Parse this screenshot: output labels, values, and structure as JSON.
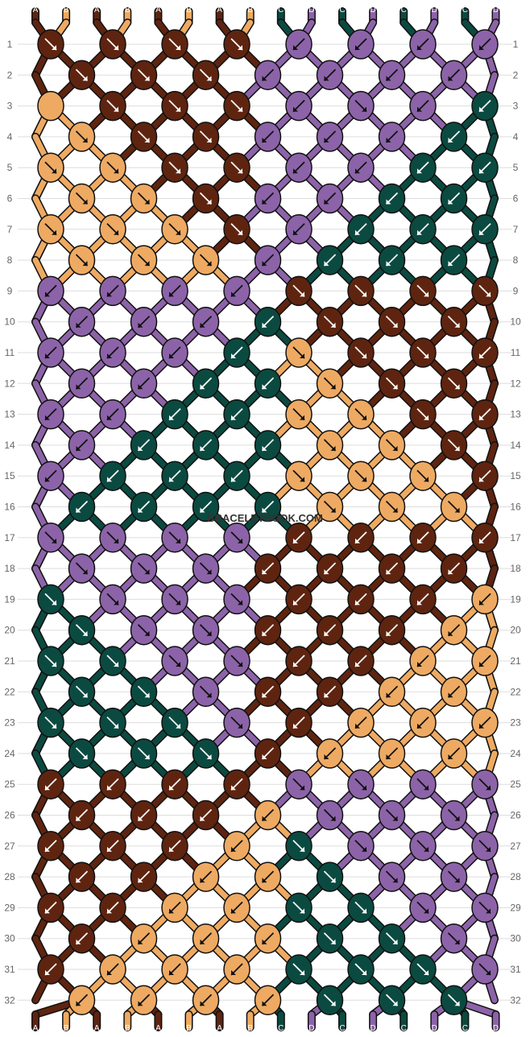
{
  "colors": {
    "A": "#5e2410",
    "B": "#eeaa62",
    "C": "#0b4a40",
    "D": "#8c63a8"
  },
  "top_strings": [
    "A",
    "B",
    "A",
    "B",
    "A",
    "B",
    "A",
    "B",
    "C",
    "D",
    "C",
    "D",
    "C",
    "D",
    "C",
    "D"
  ],
  "bottom_strings": [
    "A",
    "B",
    "A",
    "B",
    "A",
    "B",
    "A",
    "B",
    "C",
    "D",
    "C",
    "D",
    "C",
    "D",
    "C",
    "D"
  ],
  "rows": [
    "1",
    "2",
    "3",
    "4",
    "5",
    "6",
    "7",
    "8",
    "9",
    "10",
    "11",
    "12",
    "13",
    "14",
    "15",
    "16",
    "17",
    "18",
    "19",
    "20",
    "21",
    "22",
    "23",
    "24",
    "25",
    "26",
    "27",
    "28",
    "29",
    "30",
    "31",
    "32"
  ],
  "watermark": "BRACELETBOOK.COM",
  "knots": [
    [
      [
        "A",
        "se"
      ],
      [
        "A",
        "se"
      ],
      [
        "A",
        "se"
      ],
      [
        "A",
        "se"
      ],
      [
        "D",
        "sw"
      ],
      [
        "D",
        "sw"
      ],
      [
        "D",
        "sw"
      ],
      [
        "D",
        "sw"
      ]
    ],
    [
      [
        "A",
        "se"
      ],
      [
        "A",
        "se"
      ],
      [
        "A",
        "se"
      ],
      [
        "D",
        "sw"
      ],
      [
        "D",
        "sw"
      ],
      [
        "D",
        "sw"
      ],
      [
        "D",
        "sw"
      ]
    ],
    [
      [
        "B",
        "n"
      ],
      [
        "A",
        "se"
      ],
      [
        "A",
        "se"
      ],
      [
        "A",
        "se"
      ],
      [
        "D",
        "sw"
      ],
      [
        "D",
        "se"
      ],
      [
        "D",
        "sw"
      ],
      [
        "C",
        "sw"
      ]
    ],
    [
      [
        "B",
        "se"
      ],
      [
        "A",
        "se"
      ],
      [
        "A",
        "se"
      ],
      [
        "D",
        "sw"
      ],
      [
        "D",
        "sw"
      ],
      [
        "D",
        "sw"
      ],
      [
        "C",
        "sw"
      ]
    ],
    [
      [
        "B",
        "se"
      ],
      [
        "B",
        "se"
      ],
      [
        "A",
        "se"
      ],
      [
        "A",
        "se"
      ],
      [
        "D",
        "sw"
      ],
      [
        "D",
        "sw"
      ],
      [
        "C",
        "sw"
      ],
      [
        "C",
        "sw"
      ]
    ],
    [
      [
        "B",
        "se"
      ],
      [
        "B",
        "se"
      ],
      [
        "A",
        "se"
      ],
      [
        "D",
        "sw"
      ],
      [
        "D",
        "sw"
      ],
      [
        "C",
        "sw"
      ],
      [
        "C",
        "sw"
      ]
    ],
    [
      [
        "B",
        "se"
      ],
      [
        "B",
        "se"
      ],
      [
        "B",
        "se"
      ],
      [
        "A",
        "se"
      ],
      [
        "D",
        "sw"
      ],
      [
        "C",
        "sw"
      ],
      [
        "C",
        "sw"
      ],
      [
        "C",
        "sw"
      ]
    ],
    [
      [
        "B",
        "se"
      ],
      [
        "B",
        "se"
      ],
      [
        "B",
        "se"
      ],
      [
        "D",
        "sw"
      ],
      [
        "C",
        "sw"
      ],
      [
        "C",
        "sw"
      ],
      [
        "C",
        "sw"
      ]
    ],
    [
      [
        "D",
        "sw"
      ],
      [
        "D",
        "sw"
      ],
      [
        "D",
        "sw"
      ],
      [
        "D",
        "sw"
      ],
      [
        "A",
        "se"
      ],
      [
        "A",
        "se"
      ],
      [
        "A",
        "se"
      ],
      [
        "A",
        "se"
      ]
    ],
    [
      [
        "D",
        "sw"
      ],
      [
        "D",
        "sw"
      ],
      [
        "D",
        "sw"
      ],
      [
        "C",
        "sw"
      ],
      [
        "A",
        "se"
      ],
      [
        "A",
        "se"
      ],
      [
        "A",
        "se"
      ]
    ],
    [
      [
        "D",
        "sw"
      ],
      [
        "D",
        "sw"
      ],
      [
        "D",
        "sw"
      ],
      [
        "C",
        "sw"
      ],
      [
        "B",
        "se"
      ],
      [
        "A",
        "se"
      ],
      [
        "A",
        "se"
      ],
      [
        "A",
        "sw"
      ]
    ],
    [
      [
        "D",
        "sw"
      ],
      [
        "D",
        "sw"
      ],
      [
        "C",
        "sw"
      ],
      [
        "C",
        "sw"
      ],
      [
        "B",
        "se"
      ],
      [
        "A",
        "se"
      ],
      [
        "A",
        "se"
      ]
    ],
    [
      [
        "D",
        "sw"
      ],
      [
        "D",
        "sw"
      ],
      [
        "C",
        "sw"
      ],
      [
        "C",
        "sw"
      ],
      [
        "B",
        "se"
      ],
      [
        "B",
        "se"
      ],
      [
        "A",
        "se"
      ],
      [
        "A",
        "sw"
      ]
    ],
    [
      [
        "D",
        "sw"
      ],
      [
        "C",
        "sw"
      ],
      [
        "C",
        "sw"
      ],
      [
        "C",
        "sw"
      ],
      [
        "B",
        "se"
      ],
      [
        "B",
        "se"
      ],
      [
        "A",
        "se"
      ]
    ],
    [
      [
        "D",
        "sw"
      ],
      [
        "C",
        "sw"
      ],
      [
        "C",
        "sw"
      ],
      [
        "C",
        "sw"
      ],
      [
        "B",
        "se"
      ],
      [
        "B",
        "se"
      ],
      [
        "B",
        "se"
      ],
      [
        "A",
        "sw"
      ]
    ],
    [
      [
        "C",
        "sw"
      ],
      [
        "C",
        "sw"
      ],
      [
        "C",
        "sw"
      ],
      [
        "C",
        "sw"
      ],
      [
        "B",
        "se"
      ],
      [
        "B",
        "se"
      ],
      [
        "B",
        "se"
      ]
    ],
    [
      [
        "D",
        "se"
      ],
      [
        "D",
        "se"
      ],
      [
        "D",
        "se"
      ],
      [
        "D",
        "se"
      ],
      [
        "A",
        "sw"
      ],
      [
        "A",
        "sw"
      ],
      [
        "A",
        "sw"
      ],
      [
        "A",
        "sw"
      ]
    ],
    [
      [
        "D",
        "se"
      ],
      [
        "D",
        "se"
      ],
      [
        "D",
        "se"
      ],
      [
        "A",
        "sw"
      ],
      [
        "A",
        "sw"
      ],
      [
        "A",
        "sw"
      ],
      [
        "A",
        "sw"
      ]
    ],
    [
      [
        "C",
        "se"
      ],
      [
        "D",
        "se"
      ],
      [
        "D",
        "se"
      ],
      [
        "D",
        "se"
      ],
      [
        "A",
        "sw"
      ],
      [
        "A",
        "sw"
      ],
      [
        "A",
        "sw"
      ],
      [
        "B",
        "sw"
      ]
    ],
    [
      [
        "C",
        "se"
      ],
      [
        "D",
        "se"
      ],
      [
        "D",
        "se"
      ],
      [
        "A",
        "sw"
      ],
      [
        "A",
        "sw"
      ],
      [
        "A",
        "sw"
      ],
      [
        "B",
        "sw"
      ]
    ],
    [
      [
        "C",
        "se"
      ],
      [
        "C",
        "se"
      ],
      [
        "D",
        "se"
      ],
      [
        "D",
        "se"
      ],
      [
        "A",
        "sw"
      ],
      [
        "A",
        "sw"
      ],
      [
        "B",
        "sw"
      ],
      [
        "B",
        "sw"
      ]
    ],
    [
      [
        "C",
        "se"
      ],
      [
        "C",
        "se"
      ],
      [
        "D",
        "se"
      ],
      [
        "A",
        "sw"
      ],
      [
        "A",
        "sw"
      ],
      [
        "B",
        "sw"
      ],
      [
        "B",
        "sw"
      ]
    ],
    [
      [
        "C",
        "se"
      ],
      [
        "C",
        "se"
      ],
      [
        "C",
        "se"
      ],
      [
        "D",
        "se"
      ],
      [
        "A",
        "sw"
      ],
      [
        "B",
        "sw"
      ],
      [
        "B",
        "sw"
      ],
      [
        "B",
        "sw"
      ]
    ],
    [
      [
        "C",
        "se"
      ],
      [
        "C",
        "se"
      ],
      [
        "C",
        "se"
      ],
      [
        "A",
        "sw"
      ],
      [
        "B",
        "sw"
      ],
      [
        "B",
        "sw"
      ],
      [
        "B",
        "sw"
      ]
    ],
    [
      [
        "A",
        "sw"
      ],
      [
        "A",
        "sw"
      ],
      [
        "A",
        "sw"
      ],
      [
        "A",
        "sw"
      ],
      [
        "D",
        "se"
      ],
      [
        "D",
        "se"
      ],
      [
        "D",
        "se"
      ],
      [
        "D",
        "se"
      ]
    ],
    [
      [
        "A",
        "sw"
      ],
      [
        "A",
        "sw"
      ],
      [
        "A",
        "sw"
      ],
      [
        "B",
        "sw"
      ],
      [
        "D",
        "se"
      ],
      [
        "D",
        "se"
      ],
      [
        "D",
        "se"
      ]
    ],
    [
      [
        "A",
        "sw"
      ],
      [
        "A",
        "sw"
      ],
      [
        "A",
        "sw"
      ],
      [
        "B",
        "sw"
      ],
      [
        "C",
        "se"
      ],
      [
        "D",
        "se"
      ],
      [
        "D",
        "se"
      ],
      [
        "D",
        "se"
      ]
    ],
    [
      [
        "A",
        "sw"
      ],
      [
        "A",
        "sw"
      ],
      [
        "B",
        "sw"
      ],
      [
        "B",
        "sw"
      ],
      [
        "C",
        "se"
      ],
      [
        "D",
        "se"
      ],
      [
        "D",
        "se"
      ]
    ],
    [
      [
        "A",
        "sw"
      ],
      [
        "A",
        "sw"
      ],
      [
        "B",
        "sw"
      ],
      [
        "B",
        "sw"
      ],
      [
        "C",
        "se"
      ],
      [
        "C",
        "se"
      ],
      [
        "D",
        "se"
      ],
      [
        "D",
        "se"
      ]
    ],
    [
      [
        "A",
        "sw"
      ],
      [
        "B",
        "sw"
      ],
      [
        "B",
        "sw"
      ],
      [
        "B",
        "sw"
      ],
      [
        "C",
        "se"
      ],
      [
        "C",
        "se"
      ],
      [
        "D",
        "se"
      ]
    ],
    [
      [
        "A",
        "sw"
      ],
      [
        "B",
        "sw"
      ],
      [
        "B",
        "sw"
      ],
      [
        "B",
        "sw"
      ],
      [
        "C",
        "se"
      ],
      [
        "C",
        "se"
      ],
      [
        "C",
        "se"
      ],
      [
        "D",
        "se"
      ]
    ],
    [
      [
        "B",
        "sw"
      ],
      [
        "B",
        "sw"
      ],
      [
        "B",
        "sw"
      ],
      [
        "B",
        "sw"
      ],
      [
        "C",
        "se"
      ],
      [
        "C",
        "se"
      ],
      [
        "C",
        "se"
      ]
    ]
  ]
}
